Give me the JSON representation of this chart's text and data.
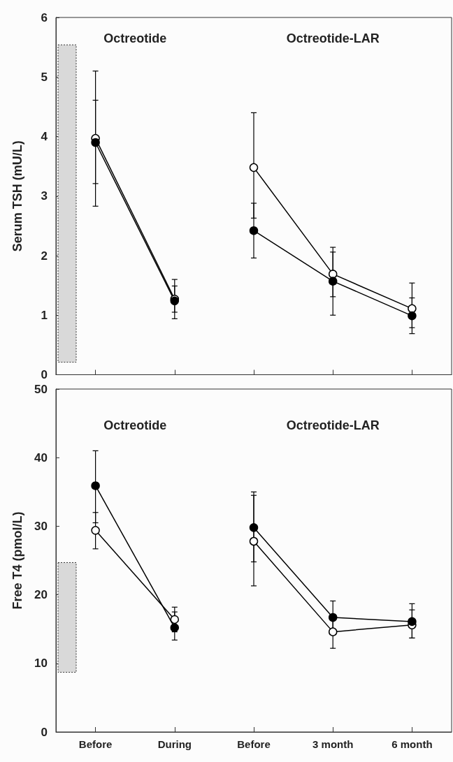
{
  "chart_data": [
    {
      "type": "line",
      "ylabel": "Serum TSH (mU/L)",
      "annotations": [
        "Octreotide",
        "Octreotide-LAR"
      ],
      "categories": [
        null,
        null,
        null,
        null,
        null
      ],
      "tick_labels": "y",
      "ylim": [
        0,
        6
      ],
      "yticks": [
        0,
        1,
        2,
        3,
        4,
        5,
        6
      ],
      "grid": false,
      "marker": "circle",
      "line_style": "solid",
      "bands": [
        {
          "axis": "y",
          "from": 0.21,
          "to": 5.54,
          "color": "#d9d9d9"
        }
      ],
      "series": [
        {
          "color": "#ffffff",
          "values": [
            3.97,
            1.27,
            3.48,
            1.69,
            1.11
          ],
          "errors": [
            [
              3.21,
              4.61
            ],
            [
              1.05,
              1.49
            ],
            [
              2.63,
              4.4
            ],
            [
              1.31,
              2.06
            ],
            [
              0.79,
              1.54
            ]
          ]
        },
        {
          "color": "#000000",
          "values": [
            3.9,
            1.24,
            2.42,
            1.57,
            0.99
          ],
          "errors": [
            [
              2.83,
              5.1
            ],
            [
              0.94,
              1.6
            ],
            [
              1.96,
              2.88
            ],
            [
              1.0,
              2.14
            ],
            [
              0.69,
              1.29
            ]
          ]
        }
      ]
    },
    {
      "type": "line",
      "ylabel": "Free T4 (pmol/L)",
      "annotations": [
        "Octreotide",
        "Octreotide-LAR"
      ],
      "categories": [
        "Before",
        "During",
        "Before",
        "3 month",
        "6 month"
      ],
      "ylim": [
        0,
        50
      ],
      "yticks": [
        0,
        10,
        20,
        30,
        40,
        50
      ],
      "grid": false,
      "marker": "circle",
      "line_style": "solid",
      "bands": [
        {
          "axis": "y",
          "from": 8.7,
          "to": 24.7,
          "color": "#d9d9d9"
        }
      ],
      "series": [
        {
          "color": "#ffffff",
          "values": [
            29.4,
            16.4,
            27.8,
            14.6,
            15.6
          ],
          "errors": [
            [
              26.7,
              32.0
            ],
            [
              14.6,
              18.2
            ],
            [
              21.3,
              34.5
            ],
            [
              12.2,
              17.0
            ],
            [
              13.7,
              17.8
            ]
          ]
        },
        {
          "color": "#000000",
          "values": [
            35.9,
            15.2,
            29.8,
            16.7,
            16.1
          ],
          "errors": [
            [
              30.5,
              41.0
            ],
            [
              13.4,
              17.5
            ],
            [
              24.8,
              35.0
            ],
            [
              14.3,
              19.1
            ],
            [
              13.7,
              18.7
            ]
          ]
        }
      ]
    }
  ]
}
